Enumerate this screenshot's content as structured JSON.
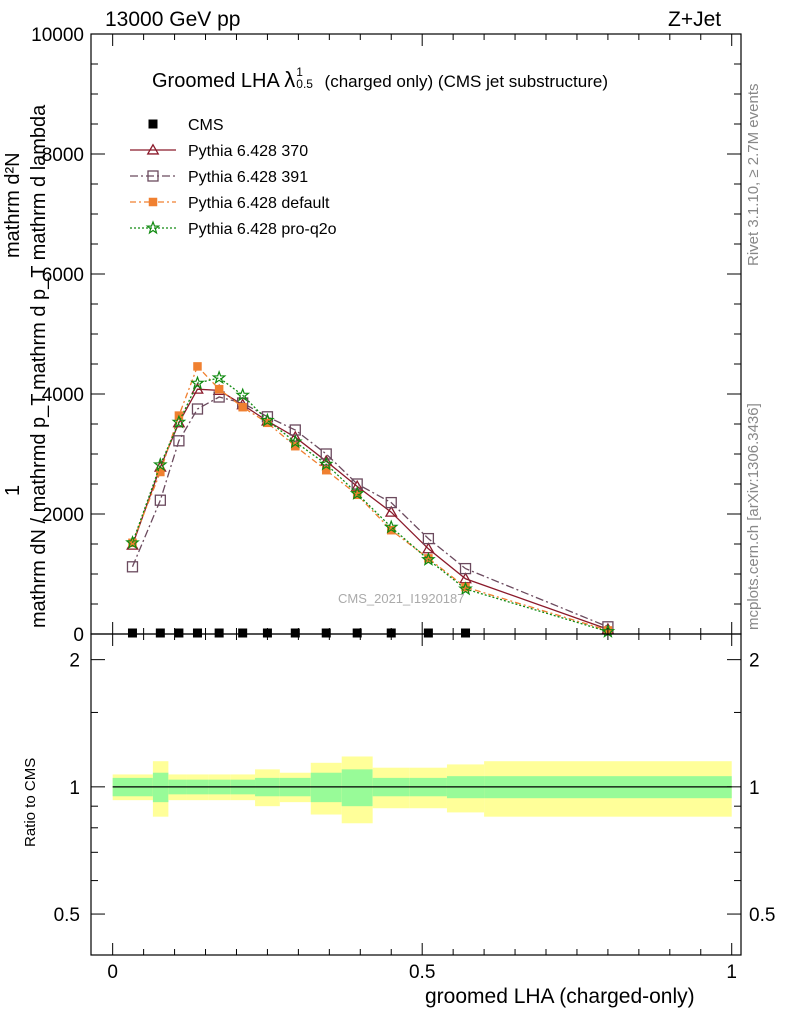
{
  "header": {
    "left": "13000 GeV pp",
    "right": "Z+Jet"
  },
  "side": {
    "top": "Rivet 3.1.10, ≥ 2.7M events",
    "bottom": "mcplots.cern.ch [arXiv:1306.3436]"
  },
  "watermark": "CMS_2021_I1920187",
  "main_title": {
    "prefix": "Groomed LHA",
    "lambda": "λ",
    "sup": "1",
    "sub": "0.5",
    "suffix": "(charged only) (CMS jet substructure)"
  },
  "ylabel_main": {
    "numerator": "mathrm d²N",
    "denominator": "mathrm d p_T mathrm d lambda",
    "factor_num": "1",
    "factor_den": "mathrm dN / mathrmd p_T"
  },
  "ylabel_ratio": "Ratio to CMS",
  "xlabel": "groomed LHA (charged-only)",
  "legend": [
    {
      "key": "cms",
      "label": "CMS"
    },
    {
      "key": "p370",
      "label": "Pythia 6.428 370"
    },
    {
      "key": "p391",
      "label": "Pythia 6.428 391"
    },
    {
      "key": "pdef",
      "label": "Pythia 6.428 default"
    },
    {
      "key": "pq2o",
      "label": "Pythia 6.428 pro-q2o"
    }
  ],
  "colors": {
    "p370": "#8b1a2b",
    "p391": "#6b4a5e",
    "pdef": "#f08030",
    "pq2o": "#108a10",
    "band_inner": "#98fb98",
    "band_outer": "#ffff99"
  },
  "chart_data": {
    "type": "line",
    "x_tick_labels": [
      "0",
      "0.5",
      "1"
    ],
    "y_tick_labels": [
      "0",
      "2000",
      "4000",
      "6000",
      "8000",
      "10000"
    ],
    "ratio_tick_labels": [
      "0.5",
      "1",
      "2"
    ],
    "xlim": [
      -0.035,
      1.015
    ],
    "ylim": [
      0,
      10000
    ],
    "ratio_ylim": [
      0.4,
      2.3
    ],
    "ratio_log": true,
    "x": [
      0.032,
      0.077,
      0.107,
      0.137,
      0.172,
      0.21,
      0.25,
      0.295,
      0.345,
      0.395,
      0.45,
      0.51,
      0.57,
      0.8
    ],
    "series": [
      {
        "key": "cms",
        "name": "CMS",
        "values": [
          0,
          0,
          0,
          0,
          0,
          0,
          0,
          0,
          0,
          0,
          0,
          0,
          0,
          null
        ]
      },
      {
        "key": "p370",
        "name": "Pythia 6.428 370",
        "values": [
          1480,
          2780,
          3520,
          4080,
          4060,
          3820,
          3550,
          3280,
          2880,
          2460,
          2030,
          1420,
          920,
          80
        ]
      },
      {
        "key": "p391",
        "name": "Pythia 6.428 391",
        "values": [
          1120,
          2230,
          3220,
          3750,
          3950,
          3850,
          3620,
          3400,
          3000,
          2500,
          2190,
          1590,
          1090,
          120
        ]
      },
      {
        "key": "pdef",
        "name": "Pythia 6.428 default",
        "values": [
          1520,
          2700,
          3640,
          4460,
          4080,
          3780,
          3520,
          3130,
          2730,
          2320,
          1730,
          1260,
          780,
          60
        ]
      },
      {
        "key": "pq2o",
        "name": "Pythia 6.428 pro-q2o",
        "values": [
          1520,
          2820,
          3530,
          4180,
          4270,
          3980,
          3560,
          3200,
          2830,
          2340,
          1780,
          1240,
          750,
          40
        ]
      }
    ],
    "ratio_band": {
      "edges": [
        0,
        0.065,
        0.09,
        0.12,
        0.155,
        0.19,
        0.23,
        0.27,
        0.32,
        0.37,
        0.42,
        0.48,
        0.54,
        0.6,
        1.0
      ],
      "inner": [
        0.05,
        0.08,
        0.04,
        0.04,
        0.04,
        0.04,
        0.05,
        0.05,
        0.08,
        0.1,
        0.05,
        0.05,
        0.06,
        0.06
      ],
      "outer": [
        0.07,
        0.15,
        0.07,
        0.07,
        0.07,
        0.07,
        0.1,
        0.08,
        0.14,
        0.18,
        0.11,
        0.11,
        0.13,
        0.15
      ]
    }
  }
}
